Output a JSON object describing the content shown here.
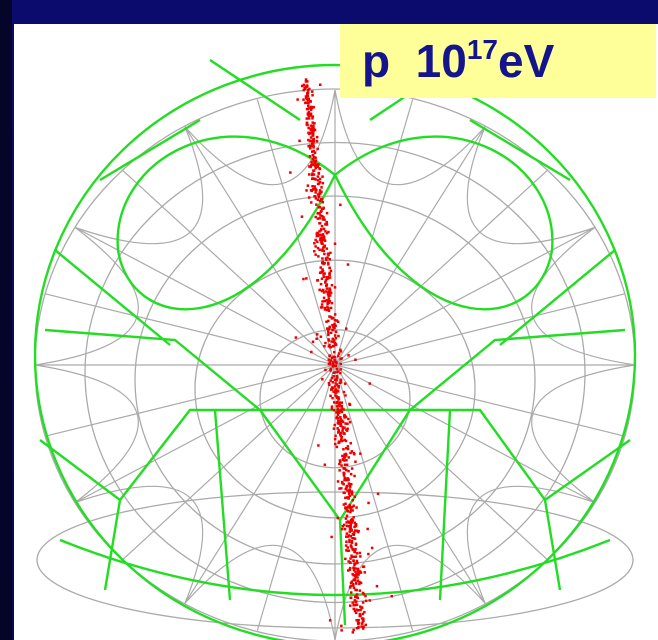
{
  "label": {
    "particle": "p",
    "energy_base": "10",
    "energy_exponent": "17",
    "energy_unit": "eV"
  }
}
